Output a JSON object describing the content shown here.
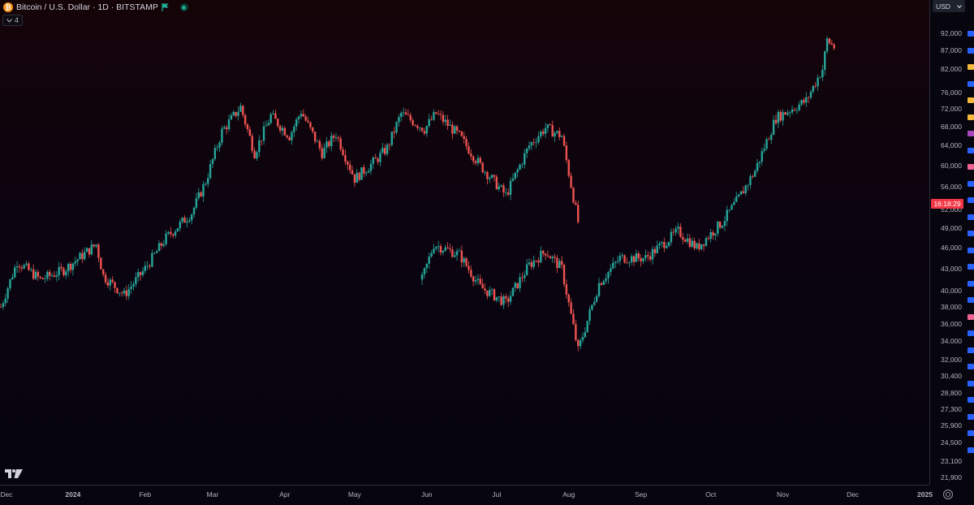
{
  "symbol": {
    "title": "Bitcoin / U.S. Dollar · 1D · BITSTAMP",
    "coin_glyph": "₿",
    "indicator_count": "4"
  },
  "price_scale": {
    "currency": "USD",
    "labels": [
      "92,000",
      "87,000",
      "82,000",
      "76,000",
      "72,000",
      "68,000",
      "64,000",
      "60,000",
      "56,000",
      "52,000",
      "49,000",
      "46,000",
      "43,000",
      "40,000",
      "38,000",
      "36,000",
      "34,000",
      "32,000",
      "30,400",
      "28,800",
      "27,300",
      "25,900",
      "24,500",
      "23,100",
      "21,900"
    ],
    "countdown": "16:18:29"
  },
  "time_axis": {
    "labels": [
      "Dec",
      "2024",
      "Feb",
      "Mar",
      "Apr",
      "May",
      "Jun",
      "Jul",
      "Aug",
      "Sep",
      "Oct",
      "Nov",
      "Dec",
      "2025"
    ]
  },
  "colors": {
    "up": "#26a69a",
    "down": "#ef5350",
    "background_top": "#140408",
    "background_bottom": "#05040f",
    "current_price": "#f23645"
  },
  "chart_data": {
    "type": "candlestick",
    "title": "Bitcoin / U.S. Dollar · 1D · BITSTAMP",
    "y_scale": "log",
    "ylim": [
      21000,
      95000
    ],
    "x_range": [
      "2023-12-01",
      "2025-01-05"
    ],
    "grid": false,
    "series": [
      {
        "segment": "upper",
        "points": [
          [
            "2023-12-01",
            38000
          ],
          [
            "2023-12-08",
            44000
          ],
          [
            "2023-12-18",
            41500
          ],
          [
            "2023-12-28",
            42800
          ],
          [
            "2024-01-11",
            46500
          ],
          [
            "2024-01-14",
            42000
          ],
          [
            "2024-01-23",
            39500
          ],
          [
            "2024-02-01",
            43000
          ],
          [
            "2024-02-10",
            47500
          ],
          [
            "2024-02-21",
            51500
          ],
          [
            "2024-02-27",
            57000
          ],
          [
            "2024-03-05",
            67000
          ],
          [
            "2024-03-13",
            72500
          ],
          [
            "2024-03-19",
            62500
          ],
          [
            "2024-03-26",
            70500
          ],
          [
            "2024-04-03",
            66000
          ],
          [
            "2024-04-08",
            71500
          ],
          [
            "2024-04-17",
            62500
          ],
          [
            "2024-04-23",
            66500
          ],
          [
            "2024-05-01",
            57500
          ],
          [
            "2024-05-10",
            61000
          ],
          [
            "2024-05-15",
            63500
          ],
          [
            "2024-05-21",
            71000
          ],
          [
            "2024-05-31",
            67500
          ],
          [
            "2024-06-05",
            71000
          ],
          [
            "2024-06-15",
            66000
          ],
          [
            "2024-06-24",
            60000
          ],
          [
            "2024-07-05",
            54500
          ],
          [
            "2024-07-15",
            64000
          ],
          [
            "2024-07-22",
            67800
          ],
          [
            "2024-07-29",
            66000
          ],
          [
            "2024-08-05",
            50000
          ]
        ]
      },
      {
        "segment": "lower",
        "points": [
          [
            "2024-05-30",
            41500
          ],
          [
            "2024-06-04",
            46500
          ],
          [
            "2024-06-15",
            45000
          ],
          [
            "2024-06-24",
            40500
          ],
          [
            "2024-07-05",
            38500
          ],
          [
            "2024-07-15",
            43500
          ],
          [
            "2024-07-22",
            45500
          ],
          [
            "2024-07-29",
            43000
          ],
          [
            "2024-08-05",
            33000
          ],
          [
            "2024-08-14",
            41000
          ],
          [
            "2024-08-23",
            44500
          ],
          [
            "2024-09-03",
            44500
          ],
          [
            "2024-09-17",
            48500
          ],
          [
            "2024-09-25",
            46000
          ],
          [
            "2024-10-06",
            50000
          ],
          [
            "2024-10-13",
            54000
          ],
          [
            "2024-10-20",
            59000
          ],
          [
            "2024-10-29",
            70000
          ],
          [
            "2024-11-11",
            74000
          ],
          [
            "2024-11-18",
            82000
          ],
          [
            "2024-11-20",
            90000
          ],
          [
            "2024-11-23",
            88000
          ]
        ]
      }
    ]
  }
}
